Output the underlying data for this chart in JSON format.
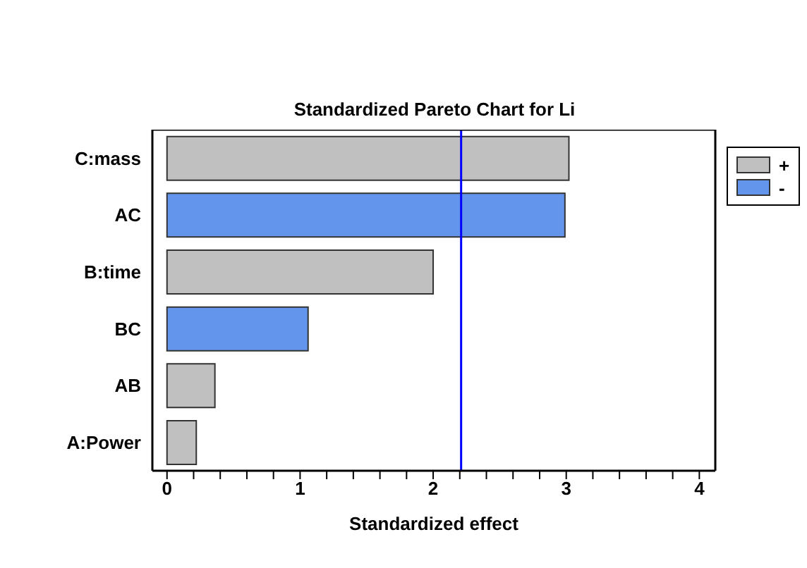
{
  "chart_data": {
    "type": "bar",
    "orientation": "horizontal",
    "stacked": true,
    "title": "Standardized Pareto Chart for Li",
    "xlabel": "Standardized effect",
    "categories": [
      "C:mass",
      "AC",
      "B:time",
      "BC",
      "AB",
      "A:Power"
    ],
    "series": [
      {
        "name": "+",
        "color": "#c0c0c0",
        "values": [
          3.02,
          null,
          2.0,
          null,
          0.36,
          0.22
        ]
      },
      {
        "name": "-",
        "color": "#6495ed",
        "values": [
          null,
          2.99,
          null,
          1.06,
          null,
          null
        ]
      }
    ],
    "xlim": [
      -0.11,
      4.12
    ],
    "xticks": [
      0,
      {
        "value": 0.2,
        "label": null
      },
      {
        "value": 0.4,
        "label": null
      },
      {
        "value": 0.6,
        "label": null
      },
      {
        "value": 0.8,
        "label": null
      },
      1,
      {
        "value": 1.2,
        "label": null
      },
      {
        "value": 1.4,
        "label": null
      },
      {
        "value": 1.6,
        "label": null
      },
      {
        "value": 1.8,
        "label": null
      },
      2,
      {
        "value": 2.2,
        "label": null
      },
      {
        "value": 2.4,
        "label": null
      },
      {
        "value": 2.6,
        "label": null
      },
      {
        "value": 2.8,
        "label": null
      },
      3,
      {
        "value": 3.2,
        "label": null
      },
      {
        "value": 3.4,
        "label": null
      },
      {
        "value": 3.6,
        "label": null
      },
      {
        "value": 3.8,
        "label": null
      },
      4
    ],
    "ref_lines": [
      {
        "axis": "x",
        "value": 2.21,
        "color": "#0000ff"
      }
    ],
    "legend": "top right"
  }
}
